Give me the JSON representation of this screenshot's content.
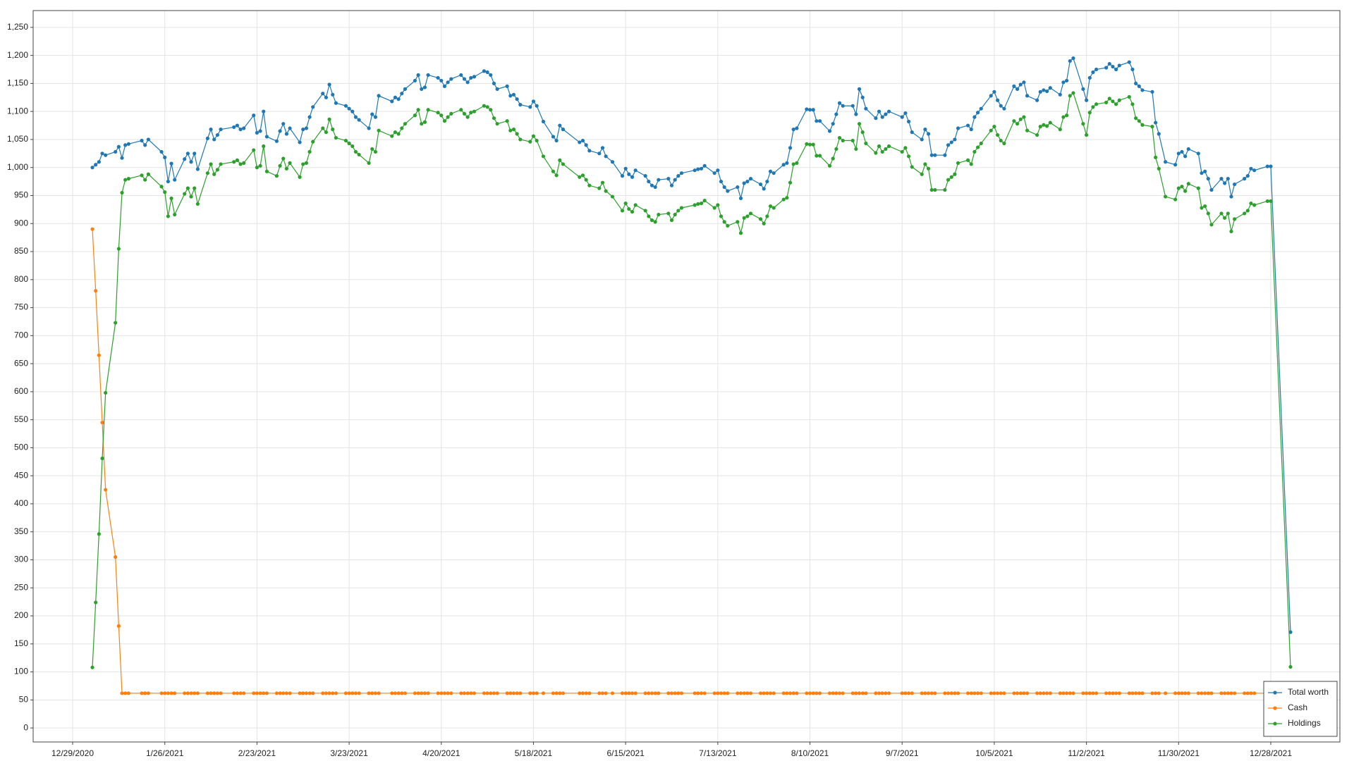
{
  "chart_data": {
    "type": "line",
    "grid": true,
    "legend": "lower right",
    "xlim": [
      "12/17/2020",
      "1/18/2022"
    ],
    "xticks": [
      "12/29/2020",
      "1/26/2021",
      "2/23/2021",
      "3/23/2021",
      "4/20/2021",
      "5/18/2021",
      "6/15/2021",
      "7/13/2021",
      "8/10/2021",
      "9/7/2021",
      "10/5/2021",
      "11/2/2021",
      "11/30/2021",
      "12/28/2021"
    ],
    "ylim": [
      -25,
      1280
    ],
    "yticks": [
      0,
      50,
      100,
      150,
      200,
      250,
      300,
      350,
      400,
      450,
      500,
      550,
      600,
      650,
      700,
      750,
      800,
      850,
      900,
      950,
      {
        "value": 1000,
        "label": "1,000"
      },
      {
        "value": 1050,
        "label": "1,050"
      },
      {
        "value": 1100,
        "label": "1,100"
      },
      {
        "value": 1150,
        "label": "1,150"
      },
      {
        "value": 1200,
        "label": "1,200"
      },
      {
        "value": 1250,
        "label": "1,250"
      }
    ],
    "x": [
      "1/4/2021",
      "1/5/2021",
      "1/6/2021",
      "1/7/2021",
      "1/8/2021",
      "1/11/2021",
      "1/12/2021",
      "1/13/2021",
      "1/14/2021",
      "1/15/2021",
      "1/19/2021",
      "1/20/2021",
      "1/21/2021",
      "1/25/2021",
      "1/26/2021",
      "1/27/2021",
      "1/28/2021",
      "1/29/2021",
      "2/1/2021",
      "2/2/2021",
      "2/3/2021",
      "2/4/2021",
      "2/5/2021",
      "2/8/2021",
      "2/9/2021",
      "2/10/2021",
      "2/11/2021",
      "2/12/2021",
      "2/16/2021",
      "2/17/2021",
      "2/18/2021",
      "2/19/2021",
      "2/22/2021",
      "2/23/2021",
      "2/24/2021",
      "2/25/2021",
      "2/26/2021",
      "3/1/2021",
      "3/2/2021",
      "3/3/2021",
      "3/4/2021",
      "3/5/2021",
      "3/8/2021",
      "3/9/2021",
      "3/10/2021",
      "3/11/2021",
      "3/12/2021",
      "3/15/2021",
      "3/16/2021",
      "3/17/2021",
      "3/18/2021",
      "3/19/2021",
      "3/22/2021",
      "3/23/2021",
      "3/24/2021",
      "3/25/2021",
      "3/26/2021",
      "3/29/2021",
      "3/30/2021",
      "3/31/2021",
      "4/1/2021",
      "4/5/2021",
      "4/6/2021",
      "4/7/2021",
      "4/8/2021",
      "4/9/2021",
      "4/12/2021",
      "4/13/2021",
      "4/14/2021",
      "4/15/2021",
      "4/16/2021",
      "4/19/2021",
      "4/20/2021",
      "4/21/2021",
      "4/22/2021",
      "4/23/2021",
      "4/26/2021",
      "4/27/2021",
      "4/28/2021",
      "4/29/2021",
      "4/30/2021",
      "5/3/2021",
      "5/4/2021",
      "5/5/2021",
      "5/6/2021",
      "5/7/2021",
      "5/10/2021",
      "5/11/2021",
      "5/12/2021",
      "5/13/2021",
      "5/14/2021",
      "5/17/2021",
      "5/18/2021",
      "5/19/2021",
      "5/21/2021",
      "5/24/2021",
      "5/25/2021",
      "5/26/2021",
      "5/27/2021",
      "6/1/2021",
      "6/2/2021",
      "6/3/2021",
      "6/4/2021",
      "6/7/2021",
      "6/8/2021",
      "6/9/2021",
      "6/11/2021",
      "6/14/2021",
      "6/15/2021",
      "6/16/2021",
      "6/17/2021",
      "6/18/2021",
      "6/21/2021",
      "6/22/2021",
      "6/23/2021",
      "6/24/2021",
      "6/25/2021",
      "6/28/2021",
      "6/29/2021",
      "6/30/2021",
      "7/1/2021",
      "7/2/2021",
      "7/6/2021",
      "7/7/2021",
      "7/8/2021",
      "7/9/2021",
      "7/12/2021",
      "7/13/2021",
      "7/14/2021",
      "7/15/2021",
      "7/16/2021",
      "7/19/2021",
      "7/20/2021",
      "7/21/2021",
      "7/22/2021",
      "7/23/2021",
      "7/26/2021",
      "7/27/2021",
      "7/28/2021",
      "7/29/2021",
      "7/30/2021",
      "8/2/2021",
      "8/3/2021",
      "8/4/2021",
      "8/5/2021",
      "8/6/2021",
      "8/9/2021",
      "8/10/2021",
      "8/11/2021",
      "8/12/2021",
      "8/13/2021",
      "8/16/2021",
      "8/17/2021",
      "8/18/2021",
      "8/19/2021",
      "8/20/2021",
      "8/23/2021",
      "8/24/2021",
      "8/25/2021",
      "8/26/2021",
      "8/27/2021",
      "8/30/2021",
      "8/31/2021",
      "9/1/2021",
      "9/2/2021",
      "9/3/2021",
      "9/7/2021",
      "9/8/2021",
      "9/9/2021",
      "9/10/2021",
      "9/13/2021",
      "9/14/2021",
      "9/15/2021",
      "9/16/2021",
      "9/17/2021",
      "9/20/2021",
      "9/21/2021",
      "9/22/2021",
      "9/23/2021",
      "9/24/2021",
      "9/27/2021",
      "9/28/2021",
      "9/29/2021",
      "9/30/2021",
      "10/1/2021",
      "10/4/2021",
      "10/5/2021",
      "10/6/2021",
      "10/7/2021",
      "10/8/2021",
      "10/11/2021",
      "10/12/2021",
      "10/13/2021",
      "10/14/2021",
      "10/15/2021",
      "10/18/2021",
      "10/19/2021",
      "10/20/2021",
      "10/21/2021",
      "10/22/2021",
      "10/25/2021",
      "10/26/2021",
      "10/27/2021",
      "10/28/2021",
      "10/29/2021",
      "11/1/2021",
      "11/2/2021",
      "11/3/2021",
      "11/4/2021",
      "11/5/2021",
      "11/8/2021",
      "11/9/2021",
      "11/10/2021",
      "11/11/2021",
      "11/12/2021",
      "11/15/2021",
      "11/16/2021",
      "11/17/2021",
      "11/18/2021",
      "11/19/2021",
      "11/22/2021",
      "11/23/2021",
      "11/24/2021",
      "11/26/2021",
      "11/29/2021",
      "11/30/2021",
      "12/1/2021",
      "12/2/2021",
      "12/3/2021",
      "12/6/2021",
      "12/7/2021",
      "12/8/2021",
      "12/9/2021",
      "12/10/2021",
      "12/13/2021",
      "12/14/2021",
      "12/15/2021",
      "12/16/2021",
      "12/17/2021",
      "12/20/2021",
      "12/21/2021",
      "12/22/2021",
      "12/23/2021",
      "12/27/2021",
      "12/28/2021",
      "1/3/2022"
    ],
    "series": [
      {
        "name": "Total worth",
        "color": "#1f77b4",
        "values": [
          1000,
          1005,
          1010,
          1025,
          1022,
          1028,
          1037,
          1017,
          1040,
          1042,
          1048,
          1040,
          1050,
          1028,
          1018,
          975,
          1007,
          978,
          1015,
          1025,
          1010,
          1025,
          997,
          1052,
          1068,
          1050,
          1058,
          1068,
          1072,
          1075,
          1068,
          1070,
          1093,
          1062,
          1065,
          1100,
          1055,
          1047,
          1065,
          1078,
          1060,
          1070,
          1045,
          1068,
          1070,
          1090,
          1108,
          1132,
          1125,
          1148,
          1130,
          1115,
          1110,
          1105,
          1100,
          1090,
          1085,
          1070,
          1095,
          1090,
          1128,
          1118,
          1125,
          1122,
          1132,
          1140,
          1155,
          1165,
          1140,
          1143,
          1165,
          1160,
          1155,
          1145,
          1152,
          1158,
          1165,
          1158,
          1152,
          1160,
          1162,
          1172,
          1170,
          1165,
          1150,
          1140,
          1145,
          1128,
          1130,
          1122,
          1112,
          1108,
          1118,
          1110,
          1082,
          1055,
          1048,
          1075,
          1068,
          1045,
          1048,
          1040,
          1030,
          1025,
          1035,
          1020,
          1010,
          985,
          998,
          988,
          983,
          995,
          985,
          975,
          968,
          965,
          978,
          980,
          968,
          978,
          985,
          990,
          995,
          997,
          998,
          1003,
          990,
          995,
          975,
          965,
          958,
          965,
          945,
          972,
          975,
          980,
          970,
          962,
          975,
          993,
          990,
          1005,
          1008,
          1035,
          1068,
          1070,
          1104,
          1103,
          1103,
          1083,
          1083,
          1065,
          1078,
          1095,
          1115,
          1110,
          1110,
          1095,
          1140,
          1125,
          1105,
          1088,
          1100,
          1090,
          1095,
          1100,
          1090,
          1097,
          1082,
          1063,
          1050,
          1068,
          1060,
          1022,
          1022,
          1022,
          1040,
          1045,
          1050,
          1070,
          1075,
          1068,
          1090,
          1098,
          1105,
          1128,
          1135,
          1120,
          1110,
          1105,
          1145,
          1140,
          1148,
          1152,
          1128,
          1120,
          1135,
          1138,
          1136,
          1142,
          1130,
          1152,
          1155,
          1190,
          1195,
          1140,
          1120,
          1160,
          1170,
          1175,
          1178,
          1185,
          1180,
          1175,
          1182,
          1188,
          1175,
          1150,
          1145,
          1138,
          1135,
          1080,
          1060,
          1010,
          1005,
          1025,
          1028,
          1020,
          1033,
          1025,
          990,
          993,
          980,
          960,
          980,
          972,
          980,
          948,
          970,
          980,
          985,
          998,
          995,
          1002,
          1002,
          171
        ]
      },
      {
        "name": "Cash",
        "color": "#ff7f0e",
        "values": [
          890,
          780,
          665,
          545,
          425,
          305,
          182,
          62,
          62,
          62,
          62,
          62,
          62,
          62,
          62,
          62,
          62,
          62,
          62,
          62,
          62,
          62,
          62,
          62,
          62,
          62,
          62,
          62,
          62,
          62,
          62,
          62,
          62,
          62,
          62,
          62,
          62,
          62,
          62,
          62,
          62,
          62,
          62,
          62,
          62,
          62,
          62,
          62,
          62,
          62,
          62,
          62,
          62,
          62,
          62,
          62,
          62,
          62,
          62,
          62,
          62,
          62,
          62,
          62,
          62,
          62,
          62,
          62,
          62,
          62,
          62,
          62,
          62,
          62,
          62,
          62,
          62,
          62,
          62,
          62,
          62,
          62,
          62,
          62,
          62,
          62,
          62,
          62,
          62,
          62,
          62,
          62,
          62,
          62,
          62,
          62,
          62,
          62,
          62,
          62,
          62,
          62,
          62,
          62,
          62,
          62,
          62,
          62,
          62,
          62,
          62,
          62,
          62,
          62,
          62,
          62,
          62,
          62,
          62,
          62,
          62,
          62,
          62,
          62,
          62,
          62,
          62,
          62,
          62,
          62,
          62,
          62,
          62,
          62,
          62,
          62,
          62,
          62,
          62,
          62,
          62,
          62,
          62,
          62,
          62,
          62,
          62,
          62,
          62,
          62,
          62,
          62,
          62,
          62,
          62,
          62,
          62,
          62,
          62,
          62,
          62,
          62,
          62,
          62,
          62,
          62,
          62,
          62,
          62,
          62,
          62,
          62,
          62,
          62,
          62,
          62,
          62,
          62,
          62,
          62,
          62,
          62,
          62,
          62,
          62,
          62,
          62,
          62,
          62,
          62,
          62,
          62,
          62,
          62,
          62,
          62,
          62,
          62,
          62,
          62,
          62,
          62,
          62,
          62,
          62,
          62,
          62,
          62,
          62,
          62,
          62,
          62,
          62,
          62,
          62,
          62,
          62,
          62,
          62,
          62,
          62,
          62,
          62,
          62,
          62,
          62,
          62,
          62,
          62,
          62,
          62,
          62,
          62,
          62,
          62,
          62,
          62,
          62,
          62,
          62,
          62,
          62,
          62,
          62,
          62,
          62
        ]
      },
      {
        "name": "Holdings",
        "color": "#2ca02c",
        "values": [
          108,
          224,
          346,
          481,
          598,
          723,
          855,
          955,
          978,
          980,
          986,
          978,
          988,
          966,
          956,
          913,
          945,
          916,
          953,
          963,
          948,
          963,
          935,
          990,
          1006,
          988,
          996,
          1006,
          1010,
          1013,
          1006,
          1008,
          1031,
          1000,
          1003,
          1038,
          993,
          985,
          1003,
          1016,
          998,
          1008,
          983,
          1006,
          1008,
          1028,
          1046,
          1070,
          1063,
          1086,
          1068,
          1053,
          1048,
          1043,
          1038,
          1028,
          1023,
          1008,
          1033,
          1028,
          1066,
          1056,
          1063,
          1060,
          1070,
          1078,
          1093,
          1103,
          1078,
          1081,
          1103,
          1098,
          1093,
          1083,
          1090,
          1096,
          1103,
          1096,
          1090,
          1098,
          1100,
          1110,
          1108,
          1103,
          1088,
          1078,
          1083,
          1066,
          1068,
          1060,
          1050,
          1046,
          1056,
          1048,
          1020,
          993,
          986,
          1013,
          1006,
          983,
          986,
          978,
          968,
          963,
          973,
          958,
          948,
          923,
          936,
          926,
          921,
          933,
          923,
          913,
          906,
          903,
          916,
          918,
          906,
          916,
          923,
          928,
          933,
          935,
          936,
          941,
          928,
          933,
          913,
          903,
          896,
          903,
          883,
          910,
          913,
          918,
          908,
          900,
          913,
          931,
          928,
          943,
          946,
          973,
          1006,
          1008,
          1042,
          1041,
          1041,
          1021,
          1021,
          1003,
          1016,
          1033,
          1053,
          1048,
          1048,
          1033,
          1078,
          1063,
          1043,
          1026,
          1038,
          1028,
          1033,
          1038,
          1028,
          1035,
          1020,
          1001,
          988,
          1006,
          998,
          960,
          960,
          960,
          978,
          983,
          988,
          1008,
          1013,
          1006,
          1028,
          1036,
          1043,
          1066,
          1073,
          1058,
          1048,
          1043,
          1083,
          1078,
          1086,
          1090,
          1066,
          1058,
          1073,
          1076,
          1074,
          1080,
          1068,
          1090,
          1093,
          1128,
          1133,
          1078,
          1058,
          1098,
          1108,
          1113,
          1116,
          1123,
          1118,
          1113,
          1120,
          1126,
          1113,
          1088,
          1083,
          1076,
          1073,
          1018,
          998,
          948,
          943,
          963,
          966,
          958,
          971,
          963,
          928,
          931,
          918,
          898,
          918,
          910,
          918,
          886,
          908,
          918,
          923,
          936,
          933,
          940,
          940,
          109
        ]
      }
    ]
  }
}
